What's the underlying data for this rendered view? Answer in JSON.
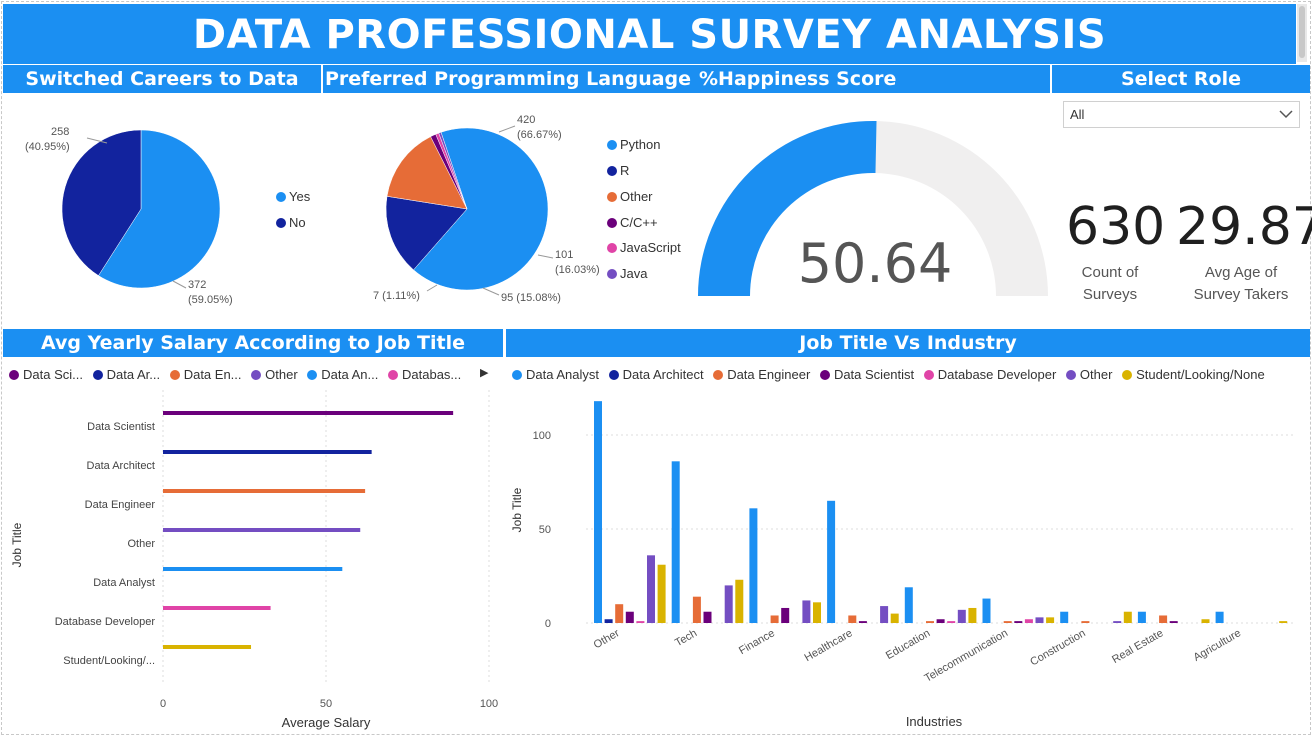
{
  "title": "DATA PROFESSIONAL SURVEY ANALYSIS",
  "headers": {
    "switched": "Switched Careers to Data",
    "language": "Preferred Programming Language",
    "happiness": "%Happiness Score",
    "role": "Select Role",
    "salary": "Avg Yearly Salary According to Job Title",
    "industry": "Job Title Vs Industry"
  },
  "role_filter": {
    "value": "All",
    "arrow": "chevron-down-icon"
  },
  "kpis": {
    "count": {
      "value": "630",
      "label1": "Count of",
      "label2": "Surveys"
    },
    "age": {
      "value": "29.87",
      "label1": "Avg Age of",
      "label2": "Survey Takers"
    }
  },
  "colors": {
    "blue": "#1b8ff2",
    "navy": "#12239e",
    "orange": "#e66c37",
    "purple": "#6b007b",
    "pink": "#e044a7",
    "violet": "#744ec2",
    "gold": "#d9b300",
    "gauge_bg": "#f0efef"
  },
  "chart_data": [
    {
      "type": "pie",
      "id": "switched",
      "slices": [
        {
          "label": "Yes",
          "value": 372,
          "text": "372",
          "pct": "(59.05%)",
          "color": "#1b8ff2"
        },
        {
          "label": "No",
          "value": 258,
          "text": "258",
          "pct": "(40.95%)",
          "color": "#12239e"
        }
      ]
    },
    {
      "type": "pie",
      "id": "language",
      "slices": [
        {
          "label": "Python",
          "value": 420,
          "text": "420",
          "pct": "(66.67%)",
          "color": "#1b8ff2"
        },
        {
          "label": "R",
          "value": 101,
          "text": "101",
          "pct": "(16.03%)",
          "color": "#12239e"
        },
        {
          "label": "Other",
          "value": 95,
          "text": "95 (15.08%)",
          "pct": "",
          "color": "#e66c37"
        },
        {
          "label": "C/C++",
          "value": 7,
          "text": "7 (1.11%)",
          "pct": "",
          "color": "#6b007b"
        },
        {
          "label": "JavaScript",
          "value": 4,
          "text": "",
          "pct": "",
          "color": "#e044a7"
        },
        {
          "label": "Java",
          "value": 3,
          "text": "",
          "pct": "",
          "color": "#744ec2"
        }
      ]
    },
    {
      "type": "gauge",
      "id": "happiness",
      "value": 50.64,
      "display": "50.64",
      "min": 0,
      "max": 100
    },
    {
      "type": "bar",
      "id": "salary",
      "orientation": "horizontal",
      "legend": [
        {
          "label": "Data Sci...",
          "color": "#6b007b"
        },
        {
          "label": "Data Ar...",
          "color": "#12239e"
        },
        {
          "label": "Data En...",
          "color": "#e66c37"
        },
        {
          "label": "Other",
          "color": "#744ec2"
        },
        {
          "label": "Data An...",
          "color": "#1b8ff2"
        },
        {
          "label": "Databas...",
          "color": "#e044a7"
        }
      ],
      "categories": [
        "Data Scientist",
        "Data Architect",
        "Data Engineer",
        "Other",
        "Data Analyst",
        "Database Developer",
        "Student/Looking/..."
      ],
      "values": [
        89,
        64,
        62,
        60.5,
        55,
        33,
        27
      ],
      "bar_colors": [
        "#6b007b",
        "#12239e",
        "#e66c37",
        "#744ec2",
        "#1b8ff2",
        "#e044a7",
        "#d9b300"
      ],
      "xlabel": "Average Salary",
      "ylabel": "Job Title",
      "xticks": [
        "0",
        "50",
        "100"
      ],
      "xlim": [
        0,
        100
      ]
    },
    {
      "type": "bar",
      "id": "industry",
      "orientation": "vertical",
      "categories": [
        "Other",
        "Tech",
        "Finance",
        "Healthcare",
        "Education",
        "Telecommunication",
        "Construction",
        "Real Estate",
        "Agriculture"
      ],
      "series": [
        {
          "name": "Data Analyst",
          "color": "#1b8ff2",
          "values": [
            118,
            86,
            61,
            65,
            19,
            13,
            6,
            6,
            6
          ]
        },
        {
          "name": "Data Architect",
          "color": "#12239e",
          "values": [
            2,
            0,
            0,
            0,
            0,
            0,
            0,
            0,
            0
          ]
        },
        {
          "name": "Data Engineer",
          "color": "#e66c37",
          "values": [
            10,
            14,
            4,
            4,
            1,
            1,
            1,
            4,
            0
          ]
        },
        {
          "name": "Data Scientist",
          "color": "#6b007b",
          "values": [
            6,
            6,
            8,
            1,
            2,
            1,
            0,
            1,
            0
          ]
        },
        {
          "name": "Database Developer",
          "color": "#e044a7",
          "values": [
            1,
            0,
            0,
            0,
            1,
            2,
            0,
            0,
            0
          ]
        },
        {
          "name": "Other",
          "color": "#744ec2",
          "values": [
            36,
            20,
            12,
            9,
            7,
            3,
            1,
            0,
            0
          ]
        },
        {
          "name": "Student/Looking/None",
          "color": "#d9b300",
          "values": [
            31,
            23,
            11,
            5,
            8,
            3,
            6,
            2,
            1
          ]
        }
      ],
      "xlabel": "Industries",
      "ylabel": "Job Title",
      "yticks": [
        "0",
        "50",
        "100"
      ],
      "ylim": [
        0,
        120
      ]
    }
  ]
}
